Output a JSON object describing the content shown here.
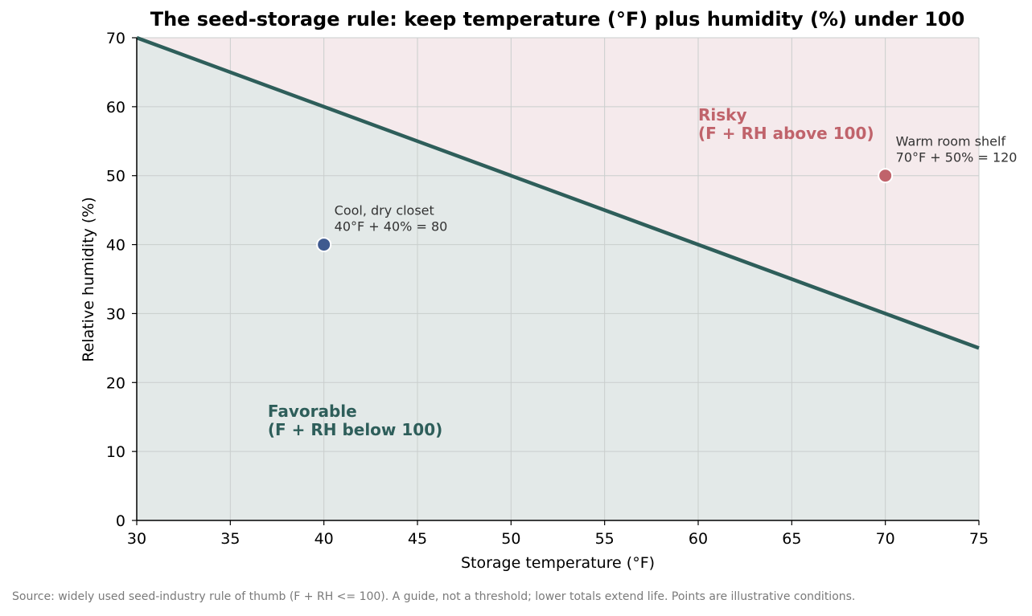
{
  "chart_data": {
    "type": "line",
    "title": "The seed-storage rule: keep temperature (°F) plus humidity (%) under 100",
    "xlabel": "Storage temperature (°F)",
    "ylabel": "Relative humidity (%)",
    "xlim": [
      30,
      75
    ],
    "ylim": [
      0,
      70
    ],
    "x_ticks": [
      30,
      35,
      40,
      45,
      50,
      55,
      60,
      65,
      70,
      75
    ],
    "y_ticks": [
      0,
      10,
      20,
      30,
      40,
      50,
      60,
      70
    ],
    "grid": true,
    "threshold_line": {
      "x": [
        30,
        75
      ],
      "y": [
        70,
        25
      ],
      "color": "#2e5e5a"
    },
    "regions": [
      {
        "label_lines": [
          "Favorable",
          "(F + RH below 100)"
        ],
        "side": "below",
        "fill_color": "#e3e9e8",
        "text_color": "#2e5e5a",
        "label_anchor": [
          37,
          15
        ]
      },
      {
        "label_lines": [
          "Risky",
          "(F + RH above 100)"
        ],
        "side": "above",
        "fill_color": "#f5eaec",
        "text_color": "#c0636b",
        "label_anchor": [
          60,
          58
        ]
      }
    ],
    "points": [
      {
        "x": 40,
        "y": 40,
        "color": "#3f5a8f",
        "label_lines": [
          "Cool, dry closet",
          "40°F + 40% = 80"
        ]
      },
      {
        "x": 70,
        "y": 50,
        "color": "#c0636b",
        "label_lines": [
          "Warm room shelf",
          "70°F + 50% = 120"
        ]
      }
    ]
  },
  "footnote": "Source: widely used seed-industry rule of thumb (F + RH <= 100). A guide, not a threshold; lower totals extend life. Points are illustrative conditions."
}
